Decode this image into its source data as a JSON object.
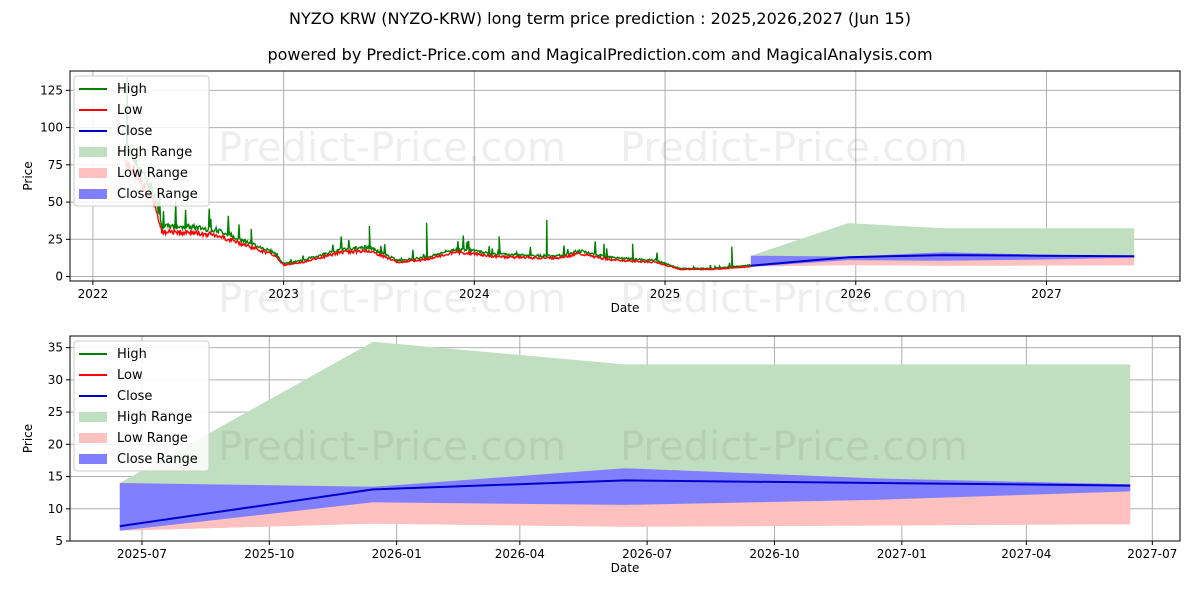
{
  "titles": {
    "main": "NYZO KRW (NYZO-KRW) long term price prediction : 2025,2026,2027 (Jun 15)",
    "sub": "powered by Predict-Price.com and MagicalPrediction.com and MagicalAnalysis.com"
  },
  "watermark": "Predict-Price.com",
  "colors": {
    "high": "#008000",
    "low": "#ff0000",
    "close": "#0000cc",
    "high_range": "#c0dfc0",
    "low_range": "#ffc0c0",
    "close_range": "#7f7fff"
  },
  "legend": [
    "High",
    "Low",
    "Close",
    "High Range",
    "Low Range",
    "Close Range"
  ],
  "chart_data": [
    {
      "type": "line",
      "name": "history",
      "xlabel": "Date",
      "ylabel": "Price",
      "xlim": [
        2021.88,
        2027.7
      ],
      "ylim": [
        -3,
        138
      ],
      "xticks": [
        2022,
        2023,
        2024,
        2025,
        2026,
        2027
      ],
      "xtick_labels": [
        "2022",
        "2023",
        "2024",
        "2025",
        "2026",
        "2027"
      ],
      "yticks": [
        0,
        25,
        50,
        75,
        100,
        125
      ],
      "ytick_labels": [
        "0",
        "25",
        "50",
        "75",
        "100",
        "125"
      ],
      "grid": true,
      "legend_position": "top-left",
      "history_anchors": [
        [
          2022.17,
          82
        ],
        [
          2022.25,
          66
        ],
        [
          2022.33,
          50
        ],
        [
          2022.36,
          31
        ],
        [
          2022.5,
          31
        ],
        [
          2022.65,
          29
        ],
        [
          2022.8,
          22
        ],
        [
          2022.95,
          15
        ],
        [
          2023.0,
          8
        ],
        [
          2023.1,
          10
        ],
        [
          2023.3,
          17
        ],
        [
          2023.45,
          18
        ],
        [
          2023.6,
          10
        ],
        [
          2023.75,
          12
        ],
        [
          2023.9,
          17
        ],
        [
          2024.0,
          16
        ],
        [
          2024.1,
          14
        ],
        [
          2024.3,
          13
        ],
        [
          2024.45,
          13
        ],
        [
          2024.55,
          16
        ],
        [
          2024.7,
          12
        ],
        [
          2024.8,
          11
        ],
        [
          2024.95,
          10
        ],
        [
          2025.08,
          5
        ],
        [
          2025.25,
          5
        ],
        [
          2025.45,
          7
        ]
      ],
      "high_spikes": [
        [
          2022.18,
          134
        ],
        [
          2022.3,
          52
        ],
        [
          2022.83,
          32
        ],
        [
          2023.45,
          34
        ],
        [
          2023.75,
          36
        ],
        [
          2024.13,
          27
        ],
        [
          2024.38,
          38
        ],
        [
          2024.68,
          22
        ],
        [
          2024.83,
          22
        ],
        [
          2025.35,
          20
        ]
      ],
      "forecast": {
        "x": [
          2025.45,
          2025.96,
          2026.46,
          2026.96,
          2027.46
        ],
        "close": [
          7.3,
          13.0,
          14.4,
          14.0,
          13.6
        ],
        "high_range_top": [
          14.0,
          35.9,
          32.4,
          32.4,
          32.4
        ],
        "low_range_bottom": [
          6.6,
          7.7,
          7.2,
          7.4,
          7.6
        ],
        "close_range_top": [
          14.0,
          13.4,
          16.3,
          14.7,
          13.8
        ],
        "close_range_bottom": [
          6.6,
          11.0,
          10.6,
          11.4,
          12.7
        ]
      }
    },
    {
      "type": "area",
      "name": "forecast",
      "xlabel": "Date",
      "ylabel": "Price",
      "x_dates": [
        "2025-06-15",
        "2025-12-15",
        "2026-06-15",
        "2026-12-15",
        "2027-06-15"
      ],
      "x_numeric": [
        0,
        183,
        365,
        548,
        730
      ],
      "xlim": [
        -36,
        766
      ],
      "ylim": [
        5,
        36.8
      ],
      "xticks": [
        16,
        108,
        200,
        289,
        381,
        473,
        565,
        655,
        746
      ],
      "xtick_labels": [
        "2025-07",
        "2025-10",
        "2026-01",
        "2026-04",
        "2026-07",
        "2026-10",
        "2027-01",
        "2027-04",
        "2027-07"
      ],
      "yticks": [
        5,
        10,
        15,
        20,
        25,
        30,
        35
      ],
      "ytick_labels": [
        "5",
        "10",
        "15",
        "20",
        "25",
        "30",
        "35"
      ],
      "grid": true,
      "legend_position": "top-left",
      "close": [
        7.3,
        13.0,
        14.4,
        14.0,
        13.6
      ],
      "high_range_top": [
        14.0,
        35.9,
        32.4,
        32.4,
        32.4
      ],
      "low_range_bottom": [
        6.6,
        7.7,
        7.2,
        7.4,
        7.6
      ],
      "close_range_top": [
        14.0,
        13.4,
        16.3,
        14.7,
        13.8
      ],
      "close_range_bottom": [
        6.6,
        11.0,
        10.6,
        11.4,
        12.7
      ]
    }
  ]
}
